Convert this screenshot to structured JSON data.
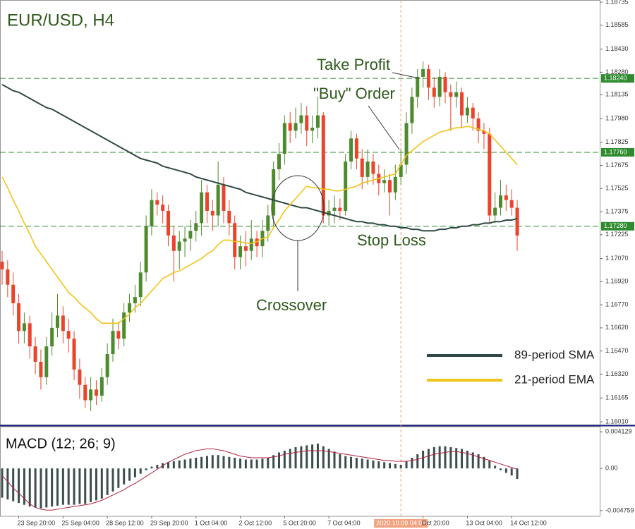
{
  "chart_data": [
    {
      "type": "candlestick",
      "title": "EUR/USD, H4",
      "annotations": [
        "Take Profit",
        "\"Buy\" Order",
        "Stop Loss",
        "Crossover"
      ],
      "up_color": "#4e8a2e",
      "down_color": "#e8452c",
      "open": [
        1.1705,
        1.17,
        1.169,
        1.1678,
        1.166,
        1.1665,
        1.165,
        1.164,
        1.163,
        1.165,
        1.1662,
        1.167,
        1.166,
        1.1655,
        1.1635,
        1.1625,
        1.1615,
        1.1622,
        1.1618,
        1.163,
        1.1645,
        1.166,
        1.1655,
        1.1672,
        1.1678,
        1.1682,
        1.1698,
        1.1728,
        1.1745,
        1.1742,
        1.1738,
        1.1722,
        1.1712,
        1.1718,
        1.172,
        1.1725,
        1.173,
        1.175,
        1.1738,
        1.1735,
        1.1755,
        1.1738,
        1.173,
        1.1708,
        1.1715,
        1.1712,
        1.172,
        1.1715,
        1.1725,
        1.1735,
        1.1765,
        1.1775,
        1.1795,
        1.179,
        1.1795,
        1.18,
        1.179,
        1.1792,
        1.18,
        1.1735,
        1.1738,
        1.174,
        1.1738,
        1.177,
        1.1785,
        1.1772,
        1.176,
        1.177,
        1.1762,
        1.1756,
        1.1758,
        1.175,
        1.176,
        1.1768,
        1.1795,
        1.1812,
        1.1825,
        1.183,
        1.1818,
        1.1812,
        1.1825,
        1.1815,
        1.1812,
        1.1815,
        1.18,
        1.1805,
        1.1798,
        1.179,
        1.1788,
        1.1735,
        1.174,
        1.1748,
        1.1745,
        1.174
      ],
      "high": [
        1.1712,
        1.1706,
        1.1698,
        1.1684,
        1.1672,
        1.167,
        1.1656,
        1.1648,
        1.1656,
        1.1672,
        1.1684,
        1.1676,
        1.1668,
        1.166,
        1.1642,
        1.163,
        1.163,
        1.1628,
        1.1636,
        1.1652,
        1.1668,
        1.1666,
        1.1678,
        1.1684,
        1.169,
        1.1705,
        1.1735,
        1.1752,
        1.175,
        1.1748,
        1.1742,
        1.1728,
        1.1725,
        1.1728,
        1.1732,
        1.1738,
        1.1758,
        1.1755,
        1.1745,
        1.177,
        1.176,
        1.1745,
        1.1735,
        1.1722,
        1.1725,
        1.1732,
        1.1725,
        1.1732,
        1.1742,
        1.177,
        1.1782,
        1.18,
        1.1802,
        1.1805,
        1.1808,
        1.1806,
        1.18,
        1.1812,
        1.1802,
        1.1745,
        1.1748,
        1.1746,
        1.1775,
        1.179,
        1.1788,
        1.1778,
        1.1778,
        1.1775,
        1.1768,
        1.1765,
        1.1762,
        1.1768,
        1.1778,
        1.1802,
        1.1818,
        1.183,
        1.1835,
        1.1833,
        1.1825,
        1.183,
        1.1828,
        1.182,
        1.1822,
        1.1818,
        1.1812,
        1.1808,
        1.1802,
        1.1795,
        1.1792,
        1.175,
        1.1758,
        1.1755,
        1.1752,
        1.1745
      ],
      "low": [
        1.169,
        1.1682,
        1.167,
        1.1652,
        1.1652,
        1.1642,
        1.1632,
        1.1622,
        1.1625,
        1.1644,
        1.1656,
        1.1652,
        1.1646,
        1.1628,
        1.1616,
        1.161,
        1.1608,
        1.1612,
        1.1614,
        1.1625,
        1.164,
        1.1648,
        1.165,
        1.1666,
        1.1672,
        1.1676,
        1.1692,
        1.1722,
        1.1735,
        1.173,
        1.1715,
        1.1692,
        1.17,
        1.1708,
        1.1712,
        1.1718,
        1.1722,
        1.173,
        1.1725,
        1.1728,
        1.173,
        1.1722,
        1.17,
        1.17,
        1.1702,
        1.1706,
        1.1708,
        1.1708,
        1.1718,
        1.1728,
        1.1758,
        1.1768,
        1.1782,
        1.1785,
        1.1788,
        1.178,
        1.1782,
        1.1785,
        1.173,
        1.1728,
        1.173,
        1.1732,
        1.1735,
        1.1765,
        1.1765,
        1.1752,
        1.1755,
        1.1755,
        1.1748,
        1.175,
        1.1735,
        1.1745,
        1.1755,
        1.1762,
        1.1788,
        1.1805,
        1.1818,
        1.181,
        1.1805,
        1.1806,
        1.1808,
        1.179,
        1.1805,
        1.1792,
        1.1795,
        1.179,
        1.1782,
        1.1778,
        1.173,
        1.173,
        1.1735,
        1.1738,
        1.1735,
        1.1712
      ],
      "close": [
        1.17,
        1.169,
        1.1678,
        1.166,
        1.1665,
        1.165,
        1.164,
        1.163,
        1.165,
        1.1662,
        1.167,
        1.166,
        1.1655,
        1.1635,
        1.1625,
        1.1615,
        1.1622,
        1.1618,
        1.163,
        1.1645,
        1.166,
        1.1655,
        1.1672,
        1.1678,
        1.1682,
        1.1698,
        1.1728,
        1.1745,
        1.1742,
        1.1738,
        1.1722,
        1.1712,
        1.1718,
        1.172,
        1.1725,
        1.173,
        1.175,
        1.1738,
        1.1735,
        1.1755,
        1.1738,
        1.173,
        1.1708,
        1.1715,
        1.1712,
        1.172,
        1.1715,
        1.1725,
        1.1735,
        1.1765,
        1.1775,
        1.1795,
        1.179,
        1.1795,
        1.18,
        1.179,
        1.1792,
        1.18,
        1.1735,
        1.1738,
        1.174,
        1.1738,
        1.177,
        1.1785,
        1.1772,
        1.176,
        1.177,
        1.1762,
        1.1756,
        1.1758,
        1.175,
        1.176,
        1.1768,
        1.1795,
        1.1812,
        1.1825,
        1.183,
        1.1818,
        1.1812,
        1.1825,
        1.1815,
        1.1812,
        1.1815,
        1.18,
        1.1805,
        1.1798,
        1.179,
        1.1788,
        1.1735,
        1.174,
        1.1748,
        1.1745,
        1.174,
        1.1722
      ],
      "series": [
        {
          "name": "89-period SMA",
          "color": "#2f4a44",
          "values": [
            1.182,
            1.1818,
            1.1816,
            1.1815,
            1.1813,
            1.1811,
            1.1809,
            1.1807,
            1.1805,
            1.1804,
            1.1802,
            1.18,
            1.1798,
            1.1796,
            1.1794,
            1.1792,
            1.179,
            1.1788,
            1.1786,
            1.1784,
            1.1782,
            1.178,
            1.1778,
            1.1776,
            1.1774,
            1.1772,
            1.1771,
            1.177,
            1.1769,
            1.1767,
            1.1766,
            1.1765,
            1.1764,
            1.1763,
            1.1762,
            1.176,
            1.1759,
            1.1758,
            1.1757,
            1.1756,
            1.1755,
            1.1754,
            1.1753,
            1.1752,
            1.175,
            1.1749,
            1.1748,
            1.1747,
            1.1746,
            1.1745,
            1.1744,
            1.1743,
            1.1742,
            1.1741,
            1.174,
            1.174,
            1.1739,
            1.1738,
            1.1737,
            1.1736,
            1.1735,
            1.1734,
            1.1733,
            1.1732,
            1.1731,
            1.1731,
            1.173,
            1.173,
            1.1729,
            1.1729,
            1.1728,
            1.1728,
            1.1727,
            1.1727,
            1.1726,
            1.1726,
            1.1725,
            1.1725,
            1.1725,
            1.1726,
            1.1726,
            1.1727,
            1.1727,
            1.1728,
            1.1728,
            1.1729,
            1.1729,
            1.173,
            1.173,
            1.1731,
            1.1731,
            1.1732,
            1.1732,
            1.1733
          ]
        },
        {
          "name": "21-period EMA",
          "color": "#f2c417",
          "values": [
            1.176,
            1.1753,
            1.1745,
            1.1738,
            1.173,
            1.1723,
            1.1715,
            1.171,
            1.1705,
            1.17,
            1.1695,
            1.169,
            1.1685,
            1.1682,
            1.1678,
            1.1675,
            1.1672,
            1.1668,
            1.1665,
            1.1665,
            1.1665,
            1.1665,
            1.1668,
            1.1671,
            1.1675,
            1.1678,
            1.1682,
            1.1686,
            1.169,
            1.1694,
            1.1696,
            1.1698,
            1.1699,
            1.1701,
            1.1703,
            1.1705,
            1.1707,
            1.171,
            1.1712,
            1.1716,
            1.1719,
            1.1719,
            1.1718,
            1.1718,
            1.1717,
            1.1717,
            1.1718,
            1.172,
            1.1721,
            1.1727,
            1.1732,
            1.1738,
            1.1742,
            1.1746,
            1.175,
            1.1754,
            1.1753,
            1.1753,
            1.1752,
            1.1752,
            1.1751,
            1.1751,
            1.1752,
            1.1753,
            1.1754,
            1.1756,
            1.1757,
            1.1758,
            1.1759,
            1.176,
            1.1761,
            1.1762,
            1.1768,
            1.1774,
            1.1777,
            1.178,
            1.1783,
            1.1785,
            1.1787,
            1.1789,
            1.179,
            1.1791,
            1.1792,
            1.1792,
            1.1793,
            1.1792,
            1.1791,
            1.179,
            1.1788,
            1.1784,
            1.178,
            1.1776,
            1.1772,
            1.1768
          ]
        }
      ],
      "levels": [
        {
          "value": 1.1824,
          "label": "1.18240"
        },
        {
          "value": 1.1776,
          "label": "1.17760"
        },
        {
          "value": 1.1728,
          "label": "1.17280"
        }
      ],
      "level_color": "#2e8b2e",
      "ylim": [
        1.15992,
        1.18749
      ],
      "yticks": [
        1.18735,
        1.18585,
        {
          "value": 1.1843,
          "label": "1.18430"
        },
        {
          "value": 1.1828,
          "label": "1.18280"
        },
        1.18135,
        {
          "value": 1.1798,
          "label": "1.17980"
        },
        1.17825,
        1.17675,
        1.17525,
        1.17375,
        1.17225,
        {
          "value": 1.1707,
          "label": "1.17070"
        },
        {
          "value": 1.1692,
          "label": "1.16920"
        },
        {
          "value": 1.1677,
          "label": "1.16770"
        },
        {
          "value": 1.1662,
          "label": "1.16620"
        },
        {
          "value": 1.1647,
          "label": "1.16470"
        },
        {
          "value": 1.1632,
          "label": "1.16320"
        },
        1.16165,
        {
          "value": 1.1601,
          "label": "1.16010"
        }
      ]
    },
    {
      "type": "macd",
      "title": "MACD (12; 26; 9)",
      "categories": [
        null,
        null,
        null,
        "23 Sep 20:00",
        null,
        null,
        null,
        null,
        null,
        null,
        null,
        "25 Sep 04:00",
        null,
        null,
        null,
        null,
        null,
        null,
        null,
        "28 Sep 12:00",
        null,
        null,
        null,
        null,
        null,
        null,
        null,
        "29 Sep 20:00",
        null,
        null,
        null,
        null,
        null,
        null,
        null,
        "1 Oct 04:00",
        null,
        null,
        null,
        null,
        null,
        null,
        null,
        "2 Oct 12:00",
        null,
        null,
        null,
        null,
        null,
        null,
        null,
        "5 Oct 20:00",
        null,
        null,
        null,
        null,
        null,
        null,
        null,
        "7 Oct 04:00",
        null,
        null,
        null,
        null,
        null,
        null,
        null,
        null,
        null,
        null,
        null,
        null,
        "2020.10.09 04:00",
        null,
        null,
        null,
        "Oct 20:00",
        null,
        null,
        null,
        null,
        null,
        null,
        null,
        "13 Oct 04:00",
        null,
        null,
        null,
        null,
        null,
        null,
        null,
        "14 Oct 12:00",
        null
      ],
      "crosshair_index": 72,
      "histogram": {
        "color": "#3a4e4c",
        "values": [
          -0.0033,
          -0.0035,
          -0.0037,
          -0.0039,
          -0.0041,
          -0.0043,
          -0.0044,
          -0.0045,
          -0.0044,
          -0.0043,
          -0.0042,
          -0.0041,
          -0.0041,
          -0.0041,
          -0.004,
          -0.004,
          -0.0038,
          -0.0036,
          -0.0034,
          -0.003,
          -0.0026,
          -0.0022,
          -0.0018,
          -0.0014,
          -0.001,
          -0.0006,
          -0.0002,
          0.0002,
          0.0004,
          0.0006,
          0.0007,
          0.0008,
          0.0009,
          0.001,
          0.0011,
          0.0012,
          0.0013,
          0.0014,
          0.0015,
          0.0015,
          0.0014,
          0.0013,
          0.0012,
          0.0011,
          0.001,
          0.001,
          0.001,
          0.0011,
          0.0012,
          0.0015,
          0.0018,
          0.002,
          0.0022,
          0.0024,
          0.0025,
          0.0026,
          0.0027,
          0.0028,
          0.0025,
          0.0022,
          0.0019,
          0.0016,
          0.0014,
          0.0013,
          0.0012,
          0.0011,
          0.001,
          0.0009,
          0.0008,
          0.0007,
          0.0006,
          0.0005,
          0.0004,
          0.0008,
          0.0012,
          0.0016,
          0.002,
          0.0022,
          0.0024,
          0.0025,
          0.0025,
          0.0024,
          0.0023,
          0.0022,
          0.002,
          0.0018,
          0.0016,
          0.0013,
          0.0009,
          0.0003,
          -0.0002,
          -0.0005,
          -0.0008,
          -0.0012
        ]
      },
      "signal": {
        "color": "#b0203c",
        "values": [
          -0.0008,
          -0.0015,
          -0.0022,
          -0.0028,
          -0.0034,
          -0.004,
          -0.0044,
          -0.0046,
          -0.0047,
          -0.0047,
          -0.0046,
          -0.0045,
          -0.0044,
          -0.0043,
          -0.0042,
          -0.0041,
          -0.004,
          -0.0038,
          -0.0036,
          -0.0033,
          -0.003,
          -0.0027,
          -0.0024,
          -0.002,
          -0.0017,
          -0.0013,
          -0.0009,
          -0.0005,
          -0.0001,
          0.0003,
          0.0007,
          0.001,
          0.0013,
          0.0016,
          0.0018,
          0.002,
          0.0021,
          0.0022,
          0.0022,
          0.0021,
          0.002,
          0.0018,
          0.0016,
          0.0014,
          0.0013,
          0.0012,
          0.0012,
          0.0012,
          0.0012,
          0.0013,
          0.0014,
          0.0016,
          0.0017,
          0.0018,
          0.0019,
          0.002,
          0.002,
          0.002,
          0.002,
          0.0019,
          0.0018,
          0.0017,
          0.0016,
          0.0015,
          0.0014,
          0.0013,
          0.0012,
          0.0011,
          0.001,
          0.0009,
          0.0009,
          0.0008,
          0.0008,
          0.0008,
          0.0009,
          0.001,
          0.0012,
          0.0014,
          0.0016,
          0.0017,
          0.0018,
          0.0019,
          0.0019,
          0.0018,
          0.0017,
          0.0015,
          0.0013,
          0.0011,
          0.0009,
          0.0007,
          0.0005,
          0.0003,
          0.0001,
          -0.0001
        ]
      },
      "ylim": [
        -0.0054,
        0.0047
      ],
      "yticks": [
        0.004129,
        {
          "value": 0,
          "label": "0.00"
        },
        -0.004759
      ]
    }
  ]
}
